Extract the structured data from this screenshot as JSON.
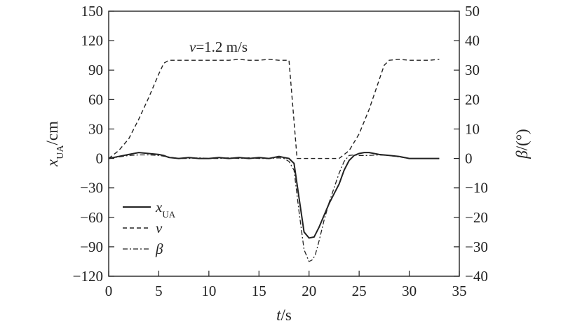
{
  "chart_data": {
    "type": "line",
    "x_label": {
      "main": "t",
      "unit": "/s"
    },
    "y_left_label": {
      "main": "x",
      "sub": "UA",
      "unit": "/cm"
    },
    "y_right_label": {
      "main": "β",
      "unit": "/(°)"
    },
    "x_ticks": [
      "0",
      "5",
      "10",
      "15",
      "20",
      "25",
      "30",
      "35"
    ],
    "y_left_ticks": [
      "150",
      "120",
      "90",
      "60",
      "30",
      "0",
      "−30",
      "−60",
      "−90",
      "−120"
    ],
    "y_right_ticks": [
      "50",
      "40",
      "30",
      "20",
      "10",
      "0",
      "−10",
      "−20",
      "−30",
      "−40"
    ],
    "xlim": [
      0,
      35
    ],
    "ylim_left": [
      -120,
      150
    ],
    "ylim_right": [
      -40,
      50
    ],
    "annotation": {
      "italic": "v",
      "text": "=1.2 m/s"
    },
    "legend": [
      {
        "main": "x",
        "sub": "UA",
        "style": "solid"
      },
      {
        "main": "v",
        "sub": "",
        "style": "dashed"
      },
      {
        "main": "β",
        "sub": "",
        "style": "dashdot"
      }
    ],
    "series": [
      {
        "name": "x_UA",
        "axis": "left",
        "style": "solid",
        "x": [
          0,
          1,
          2,
          3,
          4,
          5,
          5.5,
          6,
          7,
          8,
          9,
          10,
          11,
          12,
          13,
          14,
          15,
          16,
          17,
          17.5,
          18,
          18.5,
          19,
          19.5,
          20,
          20.5,
          21,
          21.5,
          22,
          22.5,
          23,
          23.5,
          24,
          24.5,
          25,
          25.5,
          26,
          27,
          28,
          29,
          30,
          31,
          32,
          33
        ],
        "y": [
          0,
          2,
          4,
          6,
          5,
          4,
          3,
          1,
          0,
          1,
          0,
          0,
          1,
          0,
          1,
          0,
          1,
          0,
          2,
          1,
          0,
          -5,
          -40,
          -75,
          -81,
          -80,
          -70,
          -58,
          -46,
          -36,
          -26,
          -12,
          -2,
          3,
          5,
          6,
          6,
          4,
          3,
          2,
          0,
          0,
          0,
          0
        ]
      },
      {
        "name": "v",
        "axis": "left",
        "style": "dashed",
        "x": [
          0,
          1,
          2,
          3,
          4,
          5,
          5.5,
          6,
          7,
          8,
          9,
          10,
          11,
          12,
          13,
          14,
          15,
          16,
          17,
          17.5,
          18,
          18.4,
          18.8,
          19,
          20,
          21,
          22,
          23,
          24,
          25,
          26,
          27,
          27.5,
          28,
          29,
          30,
          31,
          32,
          33
        ],
        "y": [
          0,
          8,
          20,
          40,
          62,
          86,
          97,
          100,
          100,
          100,
          100,
          100,
          100,
          100,
          101,
          100,
          100,
          101,
          100,
          100,
          100,
          50,
          0,
          0,
          0,
          0,
          0,
          0,
          8,
          25,
          50,
          80,
          95,
          100,
          101,
          100,
          100,
          100,
          101
        ]
      },
      {
        "name": "β",
        "axis": "right",
        "style": "dashdot",
        "x": [
          0,
          1,
          2,
          3,
          4,
          5,
          6,
          7,
          8,
          9,
          10,
          11,
          12,
          13,
          14,
          15,
          16,
          17,
          17.5,
          18,
          18.5,
          19,
          19.5,
          20,
          20.3,
          20.6,
          21,
          21.5,
          22,
          22.5,
          23,
          23.5,
          24,
          24.5,
          25,
          26,
          27,
          28,
          29,
          30,
          31,
          32,
          33
        ],
        "y": [
          0,
          0.5,
          1,
          1.2,
          1.2,
          1,
          0.5,
          0,
          0,
          0.2,
          0,
          0,
          0.2,
          0,
          0.2,
          0,
          0,
          0.2,
          0,
          -1,
          -4,
          -18,
          -31,
          -35,
          -34.5,
          -33,
          -28,
          -21,
          -15,
          -10,
          -5,
          -1,
          1,
          1.2,
          1,
          1,
          1.2,
          1,
          0.5,
          0,
          0,
          0,
          0
        ]
      }
    ]
  }
}
